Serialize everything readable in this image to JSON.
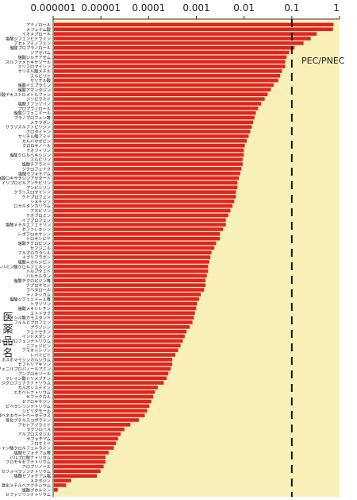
{
  "chart_data": {
    "type": "bar",
    "orientation": "horizontal",
    "x_scale": "log",
    "xlim": [
      1e-06,
      1
    ],
    "x_tick_labels": [
      "0.000001",
      "0.00001",
      "0.0001",
      "0.001",
      "0.01",
      "0.1",
      "1"
    ],
    "ylabel": "医薬品名",
    "annotation": "PEC/PNEC",
    "threshold_x": 0.1,
    "bar_color": "#e02424",
    "background_color": "#f8f0b8",
    "categories": [
      "アテノロール",
      "メフェナム酸",
      "イオメプロール",
      "塩酸ジフェンヒドラミン",
      "アセトアミノフェン",
      "塩酸プロプラノロール",
      "ジアゼパム",
      "塩酸ジルチアゼム",
      "スルファメトキサゾール",
      "エリスロマイシン",
      "サリチル酸メチル",
      "スルピリド",
      "サリチル酸",
      "塩酸イミプラミン",
      "塩酸アマンタジン",
      "臭化水素酸デキストロメトルファン",
      "ジソピラミド",
      "塩酸ナファゾリン",
      "プロプラノロール",
      "塩酸ジフェニドール",
      "プラノプロフェン等",
      "メチラポン",
      "サラゾスルファピリジン",
      "クロタミトン",
      "サリチル酸アミド",
      "カルバマゼピン",
      "クロロキノール",
      "テオフィリン",
      "塩酸クロルヘキシジン",
      "スルピリン",
      "塩酸チアラミド",
      "ジクロフェナク",
      "塩酸セフォチアム",
      "塩酸ロキサチジンアセタート",
      "イソプロピルアンチピリン",
      "アンピシリン",
      "クラリスロマイシン",
      "ケトプロフェン",
      "シメチジン",
      "ロサルタンカリウム",
      "アスピリン",
      "テオブロミン",
      "イブプロフェン",
      "塩酸メチルエフェドリン",
      "セファレキシン",
      "レボフロキサシン",
      "トロキシピド",
      "塩酸チクロピジン",
      "セフジニル",
      "フルオロウラシル",
      "イブリフラボン",
      "塩酸ニカルジピン",
      "カルバミン酸クロルフェネシン",
      "トルブタミド",
      "バルサルタン",
      "塩酸チクロピジン等",
      "ナプロキセン",
      "ラベタロール",
      "テノキシカム",
      "塩酸ジフェニドール等",
      "トラゾリン",
      "塩酸メキシレチン",
      "エトドラク",
      "メシル酸カモスタット",
      "フルルビプロフェン",
      "プラゾシン",
      "フェナセチン",
      "インドメタシン",
      "ロキソプロフェンナトリウム",
      "ニフェジピン",
      "アモキシシリン",
      "レバミピド",
      "ホスホマイシンカルシウム",
      "セフトリアキソン",
      "塩酸フェニルプロパノールアミン",
      "アンブロキソール",
      "マレイン酸トリメブチン",
      "ジクロフェナクナトリウム",
      "カルボシステイン",
      "エカベトナトリウム",
      "セファクロル",
      "セフロキサジン",
      "ピペラシリンナトリウム",
      "ジピリダモール",
      "塩酸ベネキサートベータデクス",
      "臭化ブチルスコポラミン",
      "アセトアゾラミド",
      "ラクツロース",
      "アルプロスタジル",
      "セフォチアム",
      "フロセミド",
      "マレイン酸クロルフェニラミン",
      "塩酸セフォチアム等",
      "バルプロ酸ナトリウム",
      "フロモキセフナトリウム",
      "アロプリノール",
      "セフォペラゾンナトリウム",
      "塩酸セフォチアム塩",
      "メキタジン",
      "臭化メチルベナクチジウム",
      "塩酸ブホルミン",
      "セファゾリンナトリウム"
    ],
    "values": [
      0.72,
      0.7,
      0.32,
      0.24,
      0.17,
      0.11,
      0.085,
      0.075,
      0.07,
      0.07,
      0.06,
      0.055,
      0.05,
      0.04,
      0.035,
      0.03,
      0.026,
      0.022,
      0.019,
      0.017,
      0.016,
      0.015,
      0.014,
      0.013,
      0.012,
      0.011,
      0.01,
      0.0095,
      0.0095,
      0.009,
      0.009,
      0.0085,
      0.008,
      0.0075,
      0.007,
      0.007,
      0.0065,
      0.0065,
      0.006,
      0.0055,
      0.005,
      0.0045,
      0.004,
      0.004,
      0.0035,
      0.003,
      0.003,
      0.0025,
      0.0023,
      0.002,
      0.0019,
      0.0018,
      0.0017,
      0.0017,
      0.0016,
      0.0015,
      0.0015,
      0.0014,
      0.0012,
      0.0011,
      0.001,
      0.00095,
      0.0009,
      0.00085,
      0.0008,
      0.0007,
      0.0006,
      0.00055,
      0.0005,
      0.00045,
      0.0004,
      0.00035,
      0.0003,
      0.0003,
      0.00028,
      0.00025,
      0.00023,
      0.0002,
      0.00015,
      0.00013,
      0.00012,
      0.00011,
      0.0001,
      9e-05,
      8e-05,
      6e-05,
      4e-05,
      3e-05,
      2.5e-05,
      2.2e-05,
      2e-05,
      1.8e-05,
      1.4e-05,
      1.2e-05,
      1.2e-05,
      1.1e-05,
      9.5e-06,
      8e-06,
      2.3e-06,
      1.8e-06,
      1.2e-06,
      1e-06
    ]
  }
}
